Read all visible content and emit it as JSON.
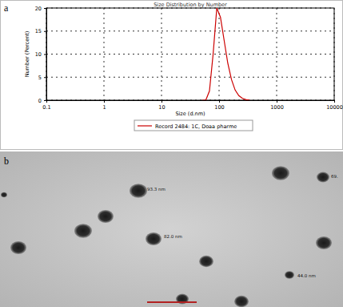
{
  "chart_data": {
    "type": "line",
    "title": "Size Distribution by Number",
    "x_label": "Size (d.nm)",
    "y_label": "Number (Percent)",
    "x": [
      50.75,
      58.77,
      68.06,
      78.82,
      91.28,
      105.7,
      122.4,
      141.8,
      164.2,
      190.1,
      220.2,
      255,
      295.3,
      342
    ],
    "series": [
      {
        "name": "Record 2484: 1C, Doaa pharme",
        "color": "#cc0000",
        "values": [
          0,
          0,
          2,
          10,
          20,
          18,
          13,
          8,
          4.5,
          2.2,
          1,
          0.4,
          0.1,
          0
        ]
      }
    ],
    "xlim": [
      0.1,
      10000
    ],
    "xticks": [
      0.1,
      1,
      10,
      100,
      1000,
      10000
    ],
    "ylim": [
      0,
      20
    ],
    "yticks": [
      0,
      5,
      10,
      15,
      20
    ],
    "log": "x",
    "grid": true,
    "legend": "bottom"
  },
  "panel_labels": [
    "a",
    "b"
  ],
  "micrograph": {
    "particle_labels": [
      "93.3 nm",
      "82.0 nm",
      "44.0 nm",
      "69."
    ]
  }
}
